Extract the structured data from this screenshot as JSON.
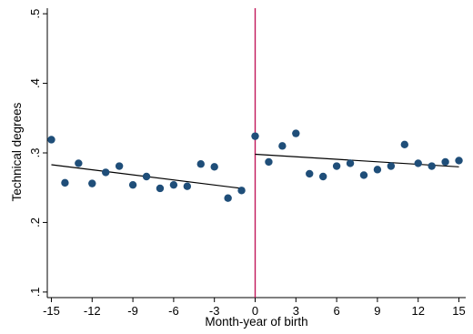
{
  "chart_data": {
    "type": "scatter",
    "xlabel": "Month-year of birth",
    "ylabel": "Technical degrees",
    "xlim": [
      -15.3,
      15.5
    ],
    "ylim": [
      0.092,
      0.508
    ],
    "xticks": [
      -15,
      -12,
      -9,
      -6,
      -3,
      0,
      3,
      6,
      9,
      12,
      15
    ],
    "xtick_labels": [
      "-15",
      "-12",
      "-9",
      "-6",
      "-3",
      "0",
      "3",
      "6",
      "9",
      "12",
      "15"
    ],
    "yticks": [
      0.1,
      0.2,
      0.3,
      0.4,
      0.5
    ],
    "ytick_labels": [
      ".1",
      ".2",
      ".3",
      ".4",
      ".5"
    ],
    "grid": false,
    "cutoff_x": 0,
    "colors": {
      "points": "#1f4e79",
      "fit_line": "#000000",
      "cutoff_line": "#c2185b",
      "axis": "#000000"
    },
    "points": [
      {
        "x": -15,
        "y": 0.319
      },
      {
        "x": -14,
        "y": 0.257
      },
      {
        "x": -13,
        "y": 0.285
      },
      {
        "x": -12,
        "y": 0.256
      },
      {
        "x": -11,
        "y": 0.272
      },
      {
        "x": -10,
        "y": 0.281
      },
      {
        "x": -9,
        "y": 0.254
      },
      {
        "x": -8,
        "y": 0.266
      },
      {
        "x": -7,
        "y": 0.249
      },
      {
        "x": -6,
        "y": 0.254
      },
      {
        "x": -5,
        "y": 0.252
      },
      {
        "x": -4,
        "y": 0.284
      },
      {
        "x": -3,
        "y": 0.28
      },
      {
        "x": -2,
        "y": 0.235
      },
      {
        "x": -1,
        "y": 0.246
      },
      {
        "x": 0,
        "y": 0.324
      },
      {
        "x": 1,
        "y": 0.287
      },
      {
        "x": 2,
        "y": 0.31
      },
      {
        "x": 3,
        "y": 0.328
      },
      {
        "x": 4,
        "y": 0.27
      },
      {
        "x": 5,
        "y": 0.266
      },
      {
        "x": 6,
        "y": 0.281
      },
      {
        "x": 7,
        "y": 0.285
      },
      {
        "x": 8,
        "y": 0.268
      },
      {
        "x": 9,
        "y": 0.276
      },
      {
        "x": 10,
        "y": 0.281
      },
      {
        "x": 11,
        "y": 0.312
      },
      {
        "x": 12,
        "y": 0.285
      },
      {
        "x": 13,
        "y": 0.281
      },
      {
        "x": 14,
        "y": 0.287
      },
      {
        "x": 15,
        "y": 0.289
      }
    ],
    "fit_lines": [
      {
        "x": [
          -15,
          -1
        ],
        "y": [
          0.283,
          0.249
        ]
      },
      {
        "x": [
          0,
          15
        ],
        "y": [
          0.298,
          0.28
        ]
      }
    ]
  }
}
